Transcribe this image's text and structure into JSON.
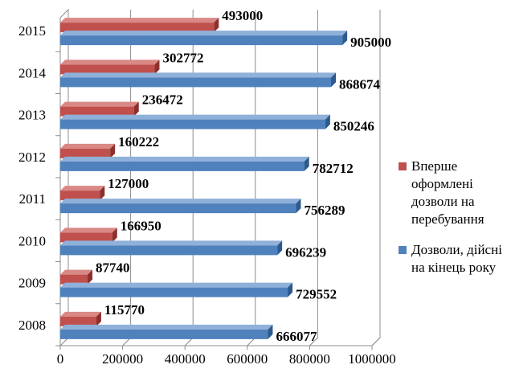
{
  "chart_data": {
    "type": "bar",
    "orientation": "horizontal",
    "categories": [
      "2008",
      "2009",
      "2010",
      "2011",
      "2012",
      "2013",
      "2014",
      "2015"
    ],
    "series": [
      {
        "name": "Вперше оформлені дозволи на перебування",
        "color": "#c0504d",
        "values": [
          115770,
          87740,
          166950,
          127000,
          160222,
          236472,
          302772,
          493000
        ]
      },
      {
        "name": "Дозволи, дійсні на кінець року",
        "color": "#4f81bd",
        "values": [
          666077,
          729552,
          696239,
          756289,
          782712,
          850246,
          868674,
          905000
        ]
      }
    ],
    "xticks": [
      "0",
      "200000",
      "400000",
      "600000",
      "800000",
      "1000000"
    ],
    "xlim": [
      0,
      1000000
    ],
    "grid": true,
    "legend_position": "right",
    "title": "",
    "xlabel": "",
    "ylabel": ""
  }
}
